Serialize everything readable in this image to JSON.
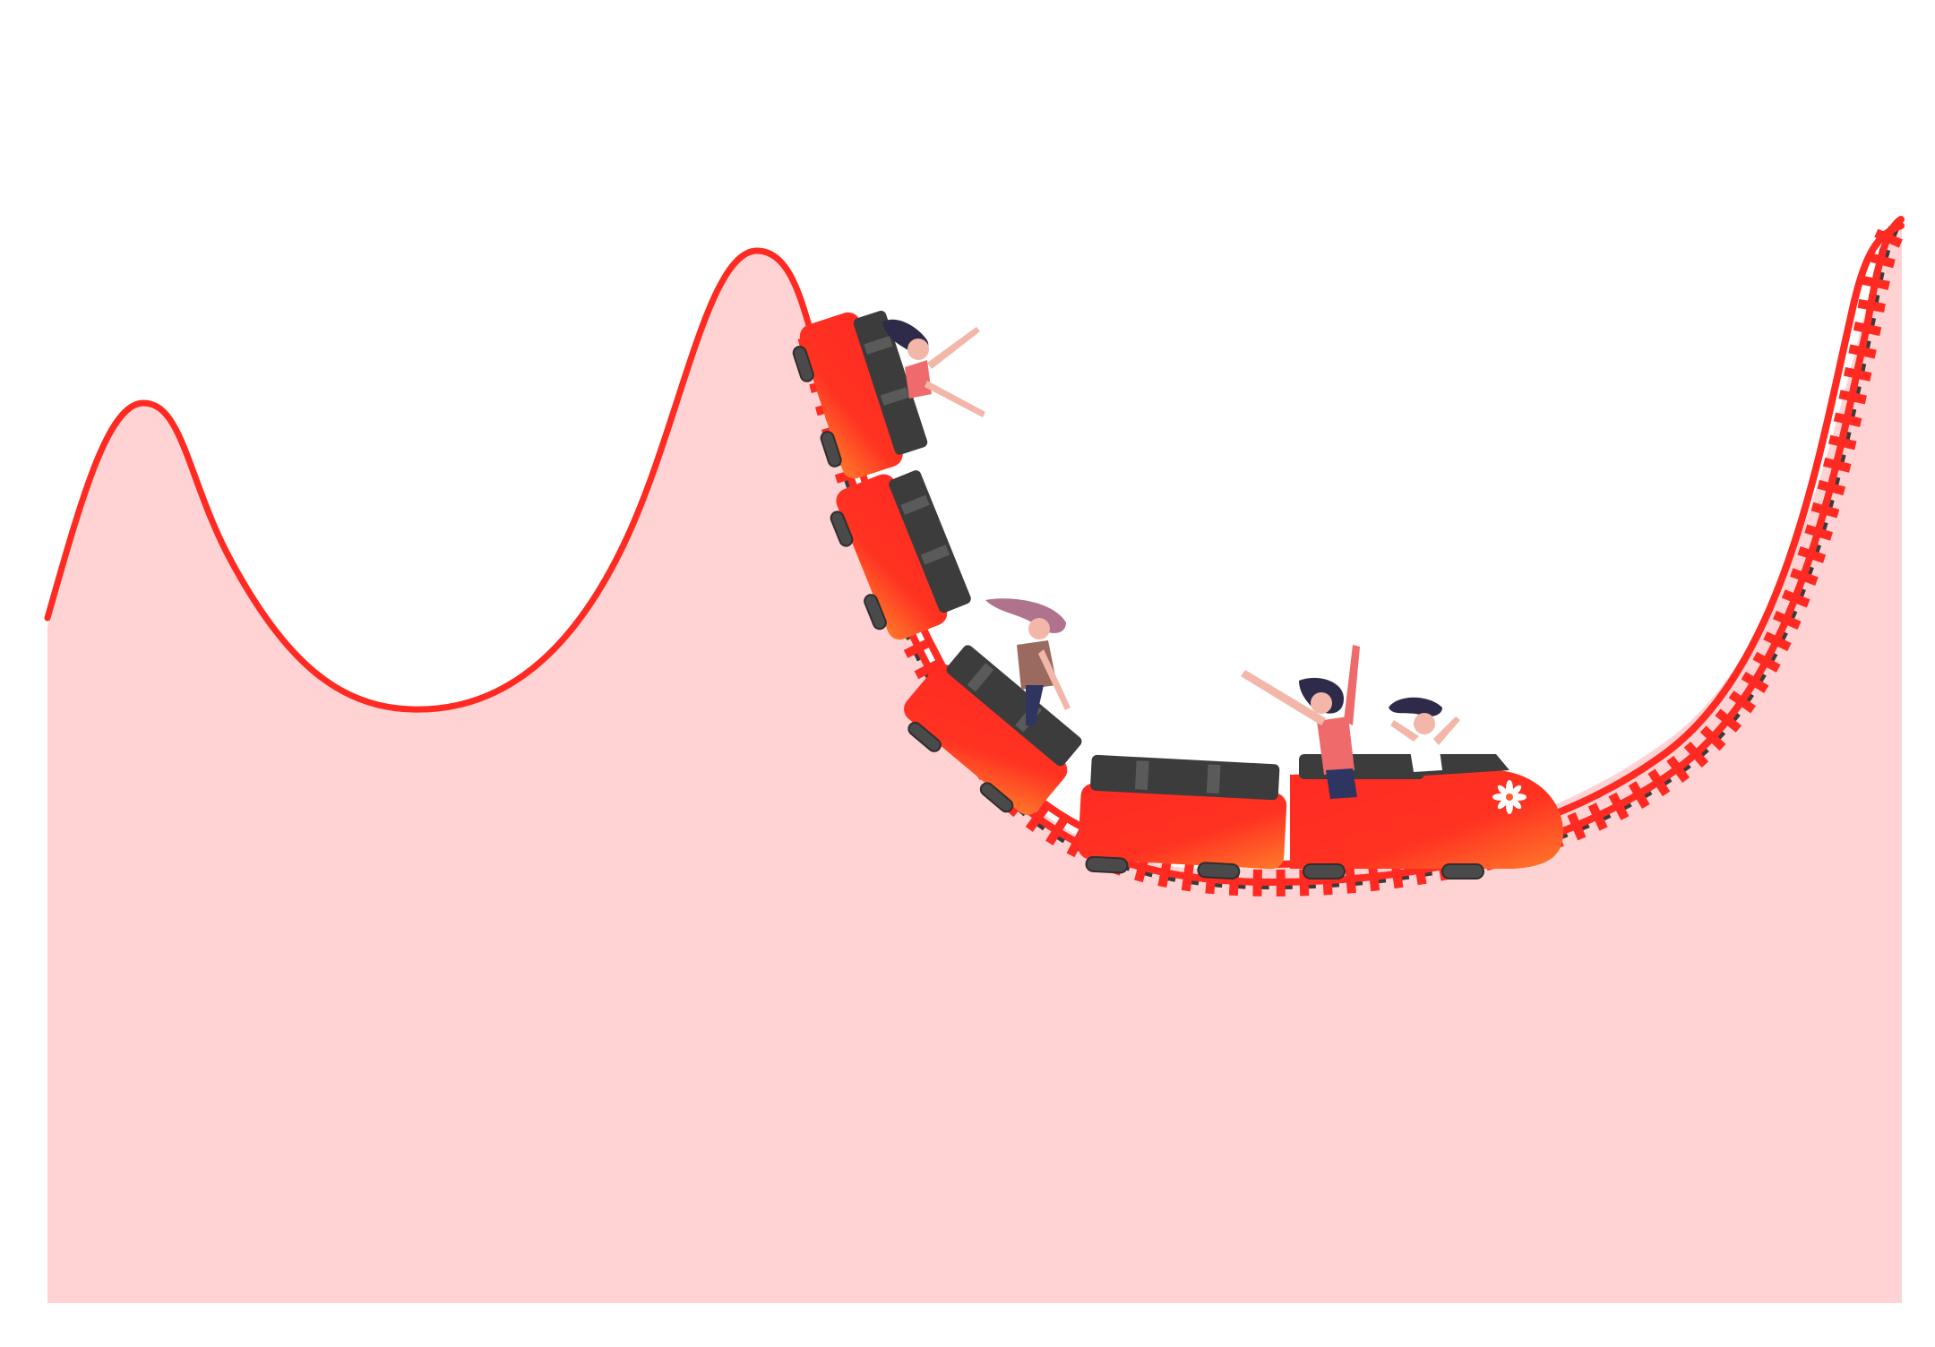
{
  "scene": {
    "description_free": true,
    "colors": {
      "background": "#ffffff",
      "hill_fill": "#ffd3d3",
      "track": "#ff2a22",
      "car_gradient_start": "#ff2a22",
      "car_gradient_end": "#ff7a2a",
      "car_top": "#3c3c3c",
      "ties": "#3b3b3b"
    },
    "icons": {
      "logo_on_front_car": "flower-icon"
    },
    "train": {
      "car_count": 5,
      "rider_count": 4
    }
  }
}
